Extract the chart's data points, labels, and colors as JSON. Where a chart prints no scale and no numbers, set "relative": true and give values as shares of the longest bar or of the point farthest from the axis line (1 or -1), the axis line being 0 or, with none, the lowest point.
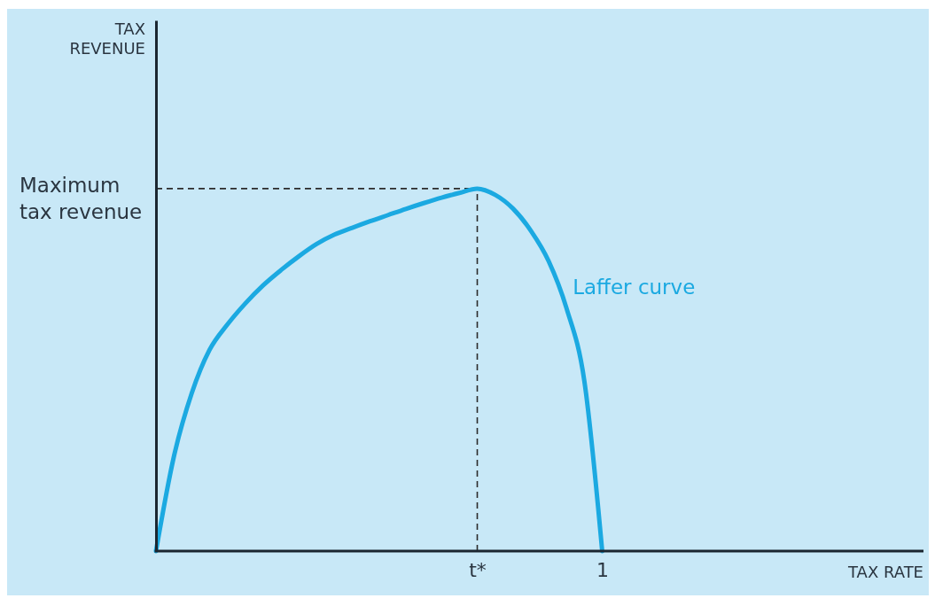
{
  "chart_data": {
    "type": "line",
    "xlabel": "TAX RATE",
    "relative": true,
    "annotations": [
      "TAX REVENUE"
    ],
    "categories": [
      null,
      null,
      null,
      null,
      null,
      null,
      null,
      null,
      null,
      null,
      null,
      null,
      null,
      null,
      null,
      null,
      null,
      null,
      "t*",
      null,
      null,
      null,
      null,
      null,
      null,
      "1",
      null,
      null,
      null,
      null,
      null,
      null,
      null,
      null,
      null,
      null,
      null,
      null,
      null,
      null,
      null,
      null,
      null,
      null
    ],
    "series": [
      {
        "name": "Laffer curve",
        "color": "#1ba9e1",
        "values": [
          0,
          0.26,
          0.435,
          0.555,
          0.625,
          0.683,
          0.733,
          0.775,
          0.813,
          0.847,
          0.873,
          0.892,
          0.91,
          0.927,
          0.944,
          0.96,
          0.975,
          0.988,
          1,
          0.983,
          0.945,
          0.884,
          0.8,
          0.67,
          0.469,
          0,
          null,
          null,
          null,
          null,
          null,
          null,
          null,
          null,
          null,
          null,
          null,
          null,
          null,
          null,
          null,
          null,
          null,
          null
        ]
      }
    ],
    "ref_lines": [
      {
        "axis": "y",
        "value": 1,
        "label": "Maximum tax revenue",
        "color": "#2b2b2b",
        "line_style": "dashed"
      },
      {
        "axis": "x",
        "value": "t*",
        "color": "#2b2b2b",
        "line_style": "dashed"
      }
    ]
  }
}
